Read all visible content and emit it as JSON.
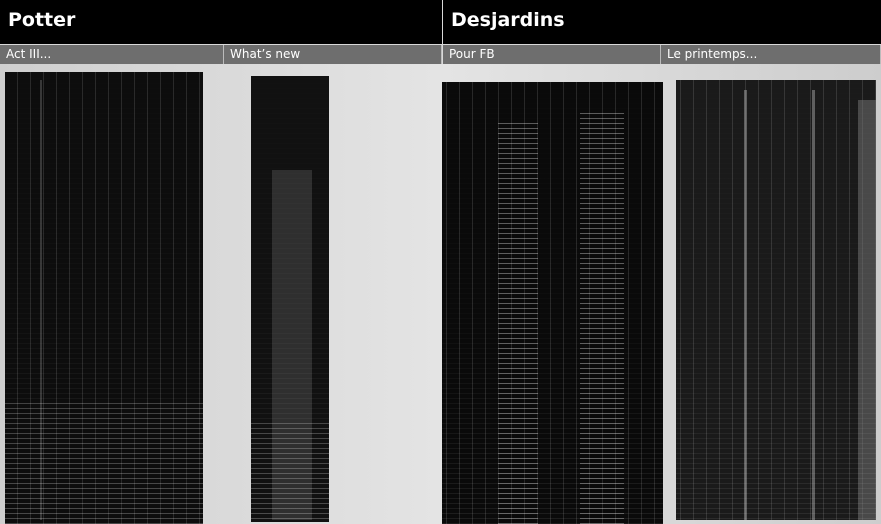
{
  "groups": [
    {
      "title": "Potter",
      "panels": [
        "Act III...",
        "What’s new"
      ]
    },
    {
      "title": "Desjardins",
      "panels": [
        "Pour FB",
        "Le printemps..."
      ]
    }
  ]
}
